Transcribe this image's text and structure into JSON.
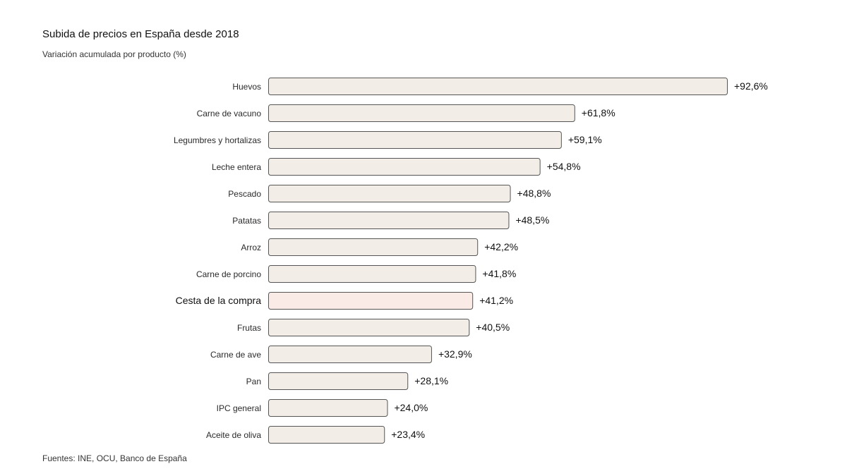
{
  "chart_data": {
    "type": "bar",
    "orientation": "horizontal",
    "title": "Subida de precios en España desde 2018",
    "subtitle": "Variación acumulada por producto (%)",
    "source": "Fuentes: INE, OCU, Banco de España",
    "categories": [
      "Huevos",
      "Carne de vacuno",
      "Legumbres y hortalizas",
      "Leche entera",
      "Pescado",
      "Patatas",
      "Arroz",
      "Carne de porcino",
      "Cesta de la compra",
      "Frutas",
      "Carne de ave",
      "Pan",
      "IPC general",
      "Aceite de oliva"
    ],
    "values": [
      92.6,
      61.8,
      59.1,
      54.8,
      48.8,
      48.5,
      42.2,
      41.8,
      41.2,
      40.5,
      32.9,
      28.1,
      24.0,
      23.4
    ],
    "value_labels": [
      "+92,6%",
      "+61,8%",
      "+59,1%",
      "+54,8%",
      "+48,8%",
      "+48,5%",
      "+42,2%",
      "+41,8%",
      "+41,2%",
      "+40,5%",
      "+32,9%",
      "+28,1%",
      "+24,0%",
      "+23,4%"
    ],
    "highlight_category": "Cesta de la compra",
    "colors": {
      "bar_fill": "#f2eee7",
      "highlight_fill": "#fbebe6",
      "highlight_stroke": "#c98a7e",
      "bar_stroke": "#555555"
    },
    "xlim": [
      0,
      92.6
    ],
    "grid": false,
    "legend": "none"
  }
}
